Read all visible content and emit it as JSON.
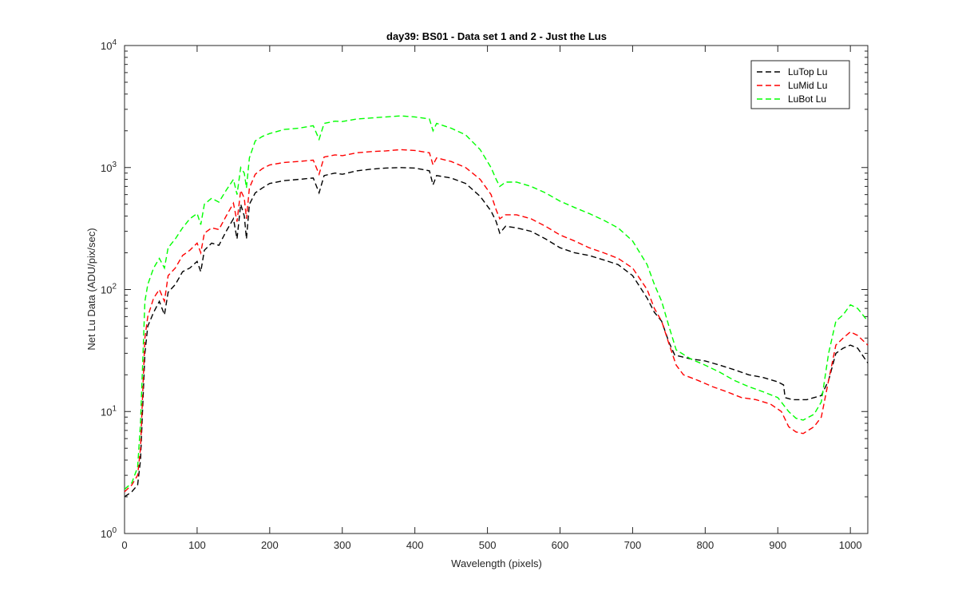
{
  "chart_data": {
    "type": "line",
    "title": "day39: BS01 - Data set 1 and 2 - Just the Lus",
    "xlabel": "Wavelength (pixels)",
    "ylabel": "Net Lu Data (ADU/pix/sec)",
    "xlim": [
      0,
      1024
    ],
    "ylim": [
      1,
      10000
    ],
    "yscale": "log",
    "grid": false,
    "legend_position": "top-right",
    "x_ticks": [
      "0",
      "100",
      "200",
      "300",
      "400",
      "500",
      "600",
      "700",
      "800",
      "900",
      "1000"
    ],
    "y_ticks": [
      {
        "base": "10",
        "exp": "0"
      },
      {
        "base": "10",
        "exp": "1"
      },
      {
        "base": "10",
        "exp": "2"
      },
      {
        "base": "10",
        "exp": "3"
      },
      {
        "base": "10",
        "exp": "4"
      }
    ],
    "series": [
      {
        "name": "LuTop  Lu",
        "color": "#000000",
        "points": [
          [
            0,
            2.0
          ],
          [
            10,
            2.2
          ],
          [
            18,
            2.5
          ],
          [
            22,
            4
          ],
          [
            28,
            30
          ],
          [
            32,
            50
          ],
          [
            40,
            65
          ],
          [
            48,
            80
          ],
          [
            55,
            62
          ],
          [
            60,
            95
          ],
          [
            70,
            110
          ],
          [
            80,
            140
          ],
          [
            90,
            150
          ],
          [
            100,
            170
          ],
          [
            105,
            140
          ],
          [
            110,
            210
          ],
          [
            120,
            240
          ],
          [
            130,
            230
          ],
          [
            140,
            300
          ],
          [
            150,
            380
          ],
          [
            155,
            260
          ],
          [
            160,
            500
          ],
          [
            165,
            400
          ],
          [
            168,
            260
          ],
          [
            172,
            500
          ],
          [
            180,
            620
          ],
          [
            190,
            680
          ],
          [
            200,
            740
          ],
          [
            220,
            780
          ],
          [
            240,
            800
          ],
          [
            260,
            820
          ],
          [
            268,
            620
          ],
          [
            275,
            860
          ],
          [
            290,
            900
          ],
          [
            300,
            880
          ],
          [
            320,
            940
          ],
          [
            340,
            970
          ],
          [
            360,
            990
          ],
          [
            380,
            1000
          ],
          [
            400,
            990
          ],
          [
            420,
            940
          ],
          [
            425,
            720
          ],
          [
            430,
            860
          ],
          [
            450,
            820
          ],
          [
            470,
            740
          ],
          [
            490,
            580
          ],
          [
            505,
            440
          ],
          [
            512,
            360
          ],
          [
            517,
            290
          ],
          [
            525,
            330
          ],
          [
            540,
            320
          ],
          [
            560,
            300
          ],
          [
            580,
            260
          ],
          [
            600,
            220
          ],
          [
            620,
            200
          ],
          [
            640,
            190
          ],
          [
            660,
            175
          ],
          [
            680,
            160
          ],
          [
            700,
            130
          ],
          [
            720,
            85
          ],
          [
            730,
            65
          ],
          [
            740,
            55
          ],
          [
            750,
            37
          ],
          [
            758,
            29
          ],
          [
            780,
            27
          ],
          [
            800,
            26
          ],
          [
            820,
            24
          ],
          [
            840,
            22
          ],
          [
            860,
            20
          ],
          [
            880,
            19
          ],
          [
            900,
            17.5
          ],
          [
            908,
            16.5
          ],
          [
            910,
            13
          ],
          [
            920,
            12.5
          ],
          [
            940,
            12.5
          ],
          [
            960,
            13.5
          ],
          [
            970,
            18
          ],
          [
            980,
            30
          ],
          [
            990,
            33
          ],
          [
            1000,
            35
          ],
          [
            1010,
            33
          ],
          [
            1024,
            25
          ]
        ]
      },
      {
        "name": "LuMid  Lu",
        "color": "#ff0000",
        "points": [
          [
            0,
            2.2
          ],
          [
            10,
            2.5
          ],
          [
            18,
            3.0
          ],
          [
            22,
            5
          ],
          [
            28,
            40
          ],
          [
            32,
            60
          ],
          [
            40,
            85
          ],
          [
            48,
            100
          ],
          [
            55,
            80
          ],
          [
            60,
            130
          ],
          [
            70,
            150
          ],
          [
            80,
            190
          ],
          [
            90,
            210
          ],
          [
            100,
            240
          ],
          [
            105,
            200
          ],
          [
            110,
            290
          ],
          [
            120,
            320
          ],
          [
            130,
            310
          ],
          [
            140,
            400
          ],
          [
            150,
            510
          ],
          [
            155,
            360
          ],
          [
            160,
            650
          ],
          [
            165,
            560
          ],
          [
            168,
            380
          ],
          [
            172,
            680
          ],
          [
            180,
            880
          ],
          [
            190,
            980
          ],
          [
            200,
            1050
          ],
          [
            220,
            1100
          ],
          [
            240,
            1120
          ],
          [
            260,
            1150
          ],
          [
            268,
            880
          ],
          [
            275,
            1220
          ],
          [
            290,
            1270
          ],
          [
            300,
            1250
          ],
          [
            320,
            1320
          ],
          [
            340,
            1350
          ],
          [
            360,
            1370
          ],
          [
            380,
            1400
          ],
          [
            400,
            1380
          ],
          [
            420,
            1320
          ],
          [
            425,
            1050
          ],
          [
            430,
            1200
          ],
          [
            450,
            1120
          ],
          [
            470,
            1000
          ],
          [
            490,
            800
          ],
          [
            505,
            600
          ],
          [
            512,
            450
          ],
          [
            517,
            380
          ],
          [
            525,
            410
          ],
          [
            540,
            410
          ],
          [
            560,
            380
          ],
          [
            580,
            330
          ],
          [
            600,
            280
          ],
          [
            620,
            250
          ],
          [
            640,
            220
          ],
          [
            660,
            200
          ],
          [
            680,
            180
          ],
          [
            700,
            150
          ],
          [
            720,
            100
          ],
          [
            730,
            70
          ],
          [
            740,
            55
          ],
          [
            750,
            36
          ],
          [
            760,
            24
          ],
          [
            770,
            20
          ],
          [
            790,
            18
          ],
          [
            810,
            16
          ],
          [
            830,
            14.5
          ],
          [
            850,
            13
          ],
          [
            870,
            12.5
          ],
          [
            890,
            11.5
          ],
          [
            905,
            10
          ],
          [
            915,
            7.5
          ],
          [
            925,
            6.8
          ],
          [
            935,
            6.6
          ],
          [
            950,
            7.5
          ],
          [
            960,
            9
          ],
          [
            970,
            18
          ],
          [
            980,
            35
          ],
          [
            990,
            40
          ],
          [
            1000,
            45
          ],
          [
            1010,
            42
          ],
          [
            1024,
            35
          ]
        ]
      },
      {
        "name": "LuBot  Lu",
        "color": "#00ff00",
        "points": [
          [
            0,
            2.3
          ],
          [
            10,
            2.6
          ],
          [
            18,
            3.5
          ],
          [
            22,
            8
          ],
          [
            28,
            80
          ],
          [
            32,
            110
          ],
          [
            40,
            150
          ],
          [
            48,
            180
          ],
          [
            55,
            150
          ],
          [
            60,
            220
          ],
          [
            70,
            260
          ],
          [
            80,
            320
          ],
          [
            90,
            380
          ],
          [
            100,
            420
          ],
          [
            105,
            340
          ],
          [
            110,
            500
          ],
          [
            120,
            560
          ],
          [
            130,
            520
          ],
          [
            140,
            650
          ],
          [
            150,
            800
          ],
          [
            155,
            600
          ],
          [
            160,
            1000
          ],
          [
            165,
            900
          ],
          [
            168,
            680
          ],
          [
            172,
            1200
          ],
          [
            180,
            1650
          ],
          [
            190,
            1800
          ],
          [
            200,
            1900
          ],
          [
            220,
            2050
          ],
          [
            240,
            2100
          ],
          [
            260,
            2200
          ],
          [
            268,
            1700
          ],
          [
            275,
            2300
          ],
          [
            290,
            2400
          ],
          [
            300,
            2380
          ],
          [
            320,
            2500
          ],
          [
            340,
            2550
          ],
          [
            360,
            2600
          ],
          [
            380,
            2650
          ],
          [
            400,
            2600
          ],
          [
            420,
            2500
          ],
          [
            425,
            2000
          ],
          [
            430,
            2300
          ],
          [
            450,
            2100
          ],
          [
            470,
            1850
          ],
          [
            490,
            1400
          ],
          [
            505,
            1000
          ],
          [
            512,
            800
          ],
          [
            517,
            700
          ],
          [
            525,
            760
          ],
          [
            540,
            760
          ],
          [
            560,
            700
          ],
          [
            580,
            620
          ],
          [
            600,
            530
          ],
          [
            620,
            470
          ],
          [
            640,
            420
          ],
          [
            660,
            370
          ],
          [
            680,
            320
          ],
          [
            700,
            250
          ],
          [
            720,
            160
          ],
          [
            730,
            110
          ],
          [
            740,
            80
          ],
          [
            750,
            50
          ],
          [
            760,
            32
          ],
          [
            780,
            27
          ],
          [
            800,
            24
          ],
          [
            820,
            21
          ],
          [
            840,
            18
          ],
          [
            860,
            16
          ],
          [
            880,
            14.5
          ],
          [
            900,
            13
          ],
          [
            915,
            10
          ],
          [
            925,
            8.8
          ],
          [
            935,
            8.5
          ],
          [
            950,
            9.5
          ],
          [
            960,
            12
          ],
          [
            970,
            30
          ],
          [
            980,
            55
          ],
          [
            990,
            62
          ],
          [
            1000,
            75
          ],
          [
            1010,
            70
          ],
          [
            1024,
            55
          ]
        ]
      }
    ]
  }
}
